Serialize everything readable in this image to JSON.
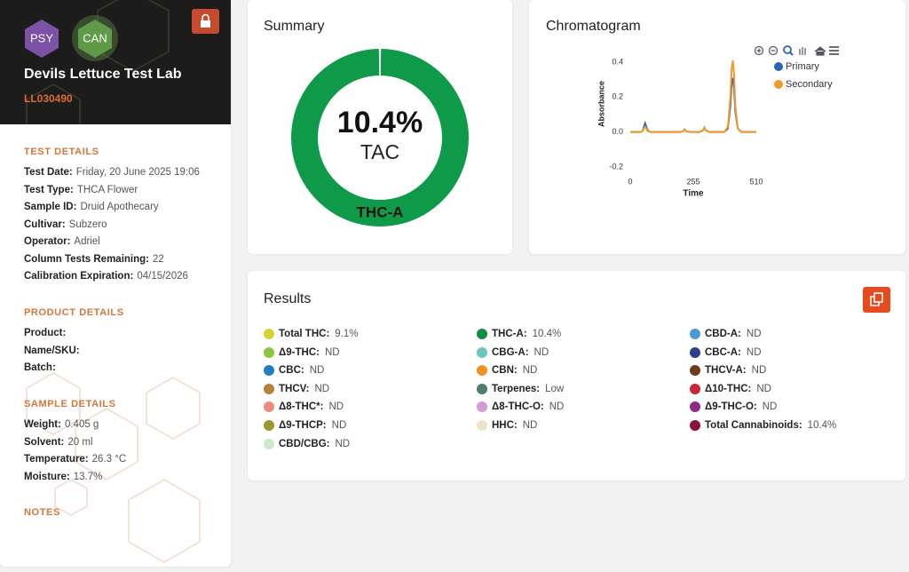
{
  "sidebar": {
    "badges": [
      "PSY",
      "CAN"
    ],
    "lab_name": "Devils Lettuce Test Lab",
    "lab_id": "LL030490",
    "sections": [
      {
        "heading": "TEST DETAILS",
        "items": [
          {
            "label": "Test Date:",
            "value": "Friday, 20 June 2025 19:06"
          },
          {
            "label": "Test Type:",
            "value": "THCA Flower"
          },
          {
            "label": "Sample ID:",
            "value": "Druid Apothecary"
          },
          {
            "label": "Cultivar:",
            "value": "Subzero"
          },
          {
            "label": "Operator:",
            "value": "Adriel"
          },
          {
            "label": "Column Tests Remaining:",
            "value": "22"
          },
          {
            "label": "Calibration Expiration:",
            "value": "04/15/2026"
          }
        ]
      },
      {
        "heading": "PRODUCT DETAILS",
        "items": [
          {
            "label": "Product:"
          },
          {
            "label": "Name/SKU:"
          },
          {
            "label": "Batch:"
          }
        ]
      },
      {
        "heading": "SAMPLE DETAILS",
        "items": [
          {
            "label": "Weight:",
            "value": "0.405 g"
          },
          {
            "label": "Solvent:",
            "value": "20 ml"
          },
          {
            "label": "Temperature:",
            "value": "26.3 °C"
          },
          {
            "label": "Moisture:",
            "value": "13.7%"
          }
        ]
      },
      {
        "heading": "NOTES",
        "items": []
      }
    ]
  },
  "chart_data": [
    {
      "type": "pie",
      "title": "Summary",
      "categories": [
        "THC-A"
      ],
      "values": [
        10.4
      ],
      "value_labels": [
        "10.4%"
      ],
      "center_label": "TAC",
      "colors": [
        "#0f9a4a"
      ]
    },
    {
      "type": "line",
      "title": "Chromatogram",
      "x_label": "Time",
      "y_label": "Absorbance",
      "x": [
        0,
        20,
        40,
        50,
        55,
        60,
        65,
        70,
        80,
        100,
        150,
        200,
        215,
        220,
        225,
        240,
        280,
        295,
        300,
        305,
        320,
        380,
        395,
        405,
        410,
        415,
        420,
        425,
        435,
        450,
        480,
        510
      ],
      "series": [
        {
          "name": "Primary",
          "color": "#2a62b8",
          "values": [
            0,
            0,
            0,
            0.005,
            0.03,
            0.05,
            0.03,
            0.01,
            0,
            0,
            0,
            0,
            0.005,
            0.015,
            0.005,
            0,
            0,
            0.01,
            0.025,
            0.01,
            0,
            0,
            0.02,
            0.15,
            0.27,
            0.31,
            0.25,
            0.12,
            0.02,
            0,
            0,
            0
          ]
        },
        {
          "name": "Secondary",
          "color": "#f39a2b",
          "values": [
            0,
            0,
            0,
            0.005,
            0.02,
            0.03,
            0.02,
            0.005,
            0,
            0,
            0,
            0,
            0.005,
            0.015,
            0.005,
            0,
            0,
            0.01,
            0.025,
            0.01,
            0,
            0,
            0.03,
            0.2,
            0.36,
            0.41,
            0.33,
            0.15,
            0.02,
            0,
            0,
            0
          ]
        }
      ],
      "xlim": [
        0,
        510
      ],
      "xticks": [
        0,
        255,
        510
      ],
      "ylim": [
        -0.2,
        0.42
      ],
      "yticks": [
        -0.2,
        {
          "value": 0,
          "label": "0.0"
        },
        0.2,
        0.4
      ],
      "legend": "upper right",
      "grid": false
    }
  ],
  "results": {
    "title": "Results",
    "columns": [
      [
        {
          "name": "Total THC:",
          "value": "9.1%",
          "color": "#d4d433"
        },
        {
          "name": "Δ9-THC:",
          "value": "ND",
          "color": "#8cc63f"
        },
        {
          "name": "CBC:",
          "value": "ND",
          "color": "#1e7fc1"
        },
        {
          "name": "THCV:",
          "value": "ND",
          "color": "#b5813a"
        },
        {
          "name": "Δ8-THC*:",
          "value": "ND",
          "color": "#ec8a80"
        },
        {
          "name": "Δ9-THCP:",
          "value": "ND",
          "color": "#9a9a2c"
        },
        {
          "name": "CBD/CBG:",
          "value": "ND",
          "color": "#c9e8cf"
        }
      ],
      [
        {
          "name": "THC-A:",
          "value": "10.4%",
          "color": "#0b8f47"
        },
        {
          "name": "CBG-A:",
          "value": "ND",
          "color": "#6bc6c0"
        },
        {
          "name": "CBN:",
          "value": "ND",
          "color": "#f39221"
        },
        {
          "name": "Terpenes:",
          "value": "Low",
          "color": "#4f7d6a"
        },
        {
          "name": "Δ8-THC-O:",
          "value": "ND",
          "color": "#d49bd1"
        },
        {
          "name": "HHC:",
          "value": "ND",
          "color": "#ece3c6"
        }
      ],
      [
        {
          "name": "CBD-A:",
          "value": "ND",
          "color": "#4a9ad6"
        },
        {
          "name": "CBC-A:",
          "value": "ND",
          "color": "#2f3f8f"
        },
        {
          "name": "THCV-A:",
          "value": "ND",
          "color": "#6b3d1a"
        },
        {
          "name": "Δ10-THC:",
          "value": "ND",
          "color": "#c8283a"
        },
        {
          "name": "Δ9-THC-O:",
          "value": "ND",
          "color": "#8e2a8a"
        },
        {
          "name": "Total Cannabinoids:",
          "value": "10.4%",
          "color": "#8c1238"
        }
      ]
    ]
  }
}
